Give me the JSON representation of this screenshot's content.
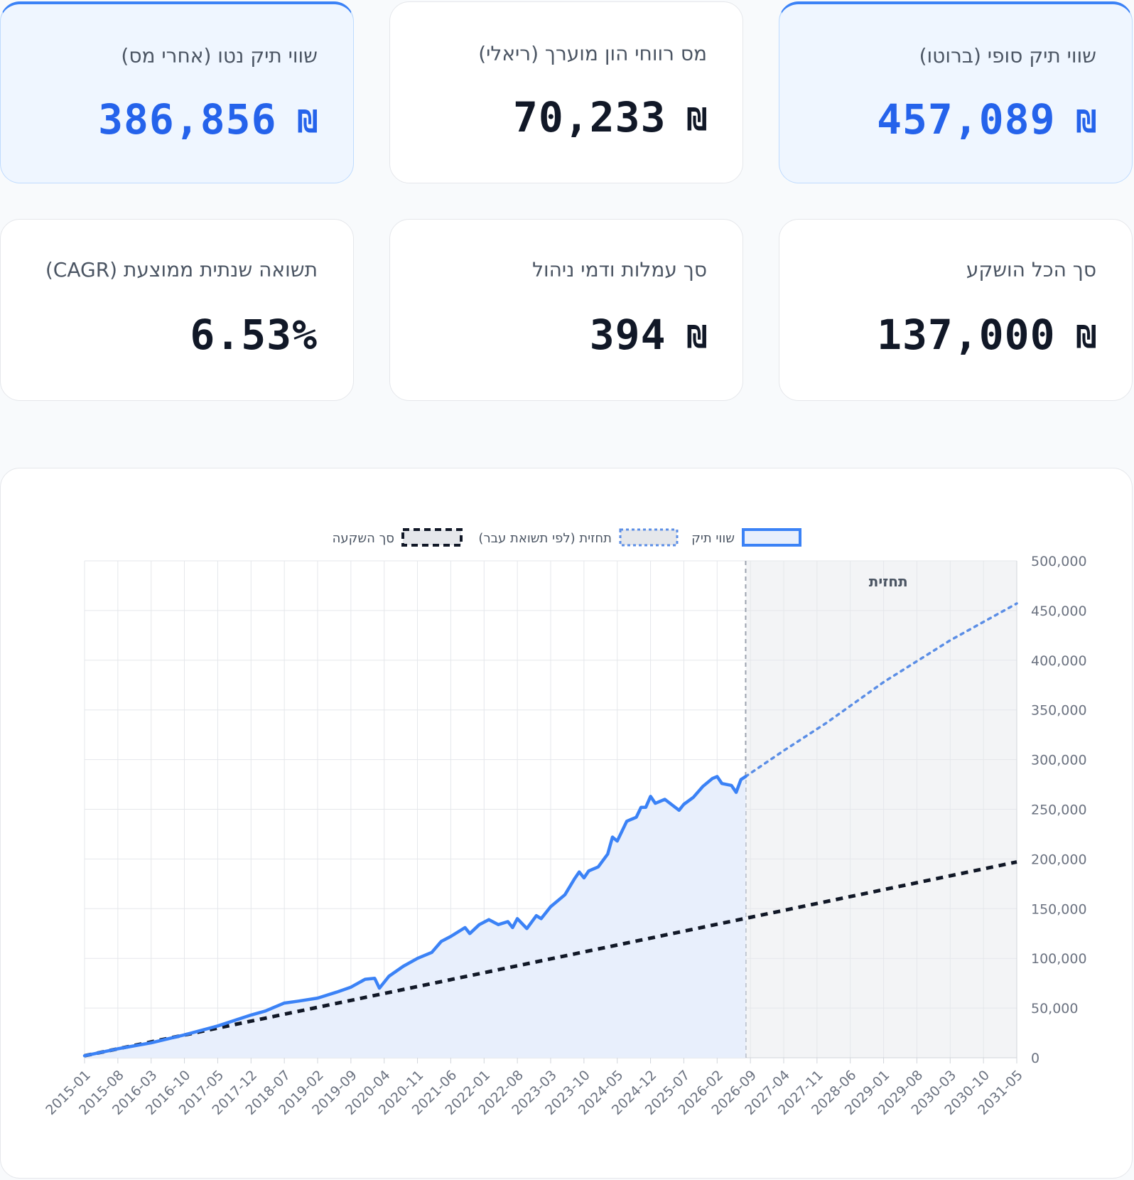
{
  "cards": {
    "gross_final": {
      "label": "שווי תיק סופי (ברוטו)",
      "value": "457,089",
      "currency": "₪"
    },
    "capital_gains_tax": {
      "label": "מס רווחי הון מוערך (ריאלי)",
      "value": "70,233",
      "currency": "₪"
    },
    "net_value": {
      "label": "שווי תיק נטו (אחרי מס)",
      "value": "386,856",
      "currency": "₪"
    },
    "total_invested": {
      "label": "סך הכל הושקע",
      "value": "137,000",
      "currency": "₪"
    },
    "fees": {
      "label": "סך עמלות ודמי ניהול",
      "value": "394",
      "currency": "₪"
    },
    "cagr": {
      "label": "תשואה שנתית ממוצעת (CAGR)",
      "value": "6.53%"
    }
  },
  "colors": {
    "accent": "#2563eb",
    "portfolio_line": "#3b82f6",
    "portfolio_fill": "#e8effc",
    "forecast_line": "#5b8ee6",
    "invested_line": "#111827",
    "forecast_region": "#f3f4f6"
  },
  "chart_data": {
    "type": "line",
    "legend_position": "top-center",
    "forecast_label": "תחזית",
    "x_tick_labels": [
      "2015-01",
      "2015-08",
      "2016-03",
      "2016-10",
      "2017-05",
      "2017-12",
      "2018-07",
      "2019-02",
      "2019-09",
      "2020-04",
      "2020-11",
      "2021-06",
      "2022-01",
      "2022-08",
      "2023-03",
      "2023-10",
      "2024-05",
      "2024-12",
      "2025-07",
      "2026-02",
      "2026-09",
      "2027-04",
      "2027-11",
      "2028-06",
      "2029-01",
      "2029-08",
      "2030-03",
      "2030-10",
      "2031-05"
    ],
    "forecast_start": "2026-08",
    "x_end": "2031-05",
    "ylim": [
      0,
      500000
    ],
    "y_ticks": [
      0,
      50000,
      100000,
      150000,
      200000,
      250000,
      300000,
      350000,
      400000,
      450000,
      500000
    ],
    "y_tick_labels": [
      "0",
      "50,000",
      "100,000",
      "150,000",
      "200,000",
      "250,000",
      "300,000",
      "350,000",
      "400,000",
      "450,000",
      "500,000"
    ],
    "grid": true,
    "series": [
      {
        "name": "שווי תיק",
        "style": "solid-filled",
        "points": [
          [
            "2015-01",
            2000
          ],
          [
            "2015-08",
            9000
          ],
          [
            "2016-03",
            15000
          ],
          [
            "2016-10",
            23000
          ],
          [
            "2017-05",
            32000
          ],
          [
            "2017-12",
            43000
          ],
          [
            "2018-03",
            47000
          ],
          [
            "2018-07",
            55000
          ],
          [
            "2018-10",
            57000
          ],
          [
            "2019-02",
            60000
          ],
          [
            "2019-06",
            66000
          ],
          [
            "2019-09",
            71000
          ],
          [
            "2019-12",
            79000
          ],
          [
            "2020-02",
            80000
          ],
          [
            "2020-03",
            70000
          ],
          [
            "2020-05",
            82000
          ],
          [
            "2020-08",
            92000
          ],
          [
            "2020-11",
            100000
          ],
          [
            "2021-02",
            106000
          ],
          [
            "2021-04",
            117000
          ],
          [
            "2021-06",
            122000
          ],
          [
            "2021-09",
            131000
          ],
          [
            "2021-10",
            125000
          ],
          [
            "2021-12",
            134000
          ],
          [
            "2022-02",
            139000
          ],
          [
            "2022-04",
            134000
          ],
          [
            "2022-06",
            137000
          ],
          [
            "2022-07",
            131000
          ],
          [
            "2022-08",
            140000
          ],
          [
            "2022-10",
            130000
          ],
          [
            "2022-12",
            143000
          ],
          [
            "2023-01",
            140000
          ],
          [
            "2023-03",
            152000
          ],
          [
            "2023-06",
            164000
          ],
          [
            "2023-08",
            180000
          ],
          [
            "2023-09",
            187000
          ],
          [
            "2023-10",
            181000
          ],
          [
            "2023-11",
            188000
          ],
          [
            "2024-01",
            192000
          ],
          [
            "2024-03",
            205000
          ],
          [
            "2024-04",
            222000
          ],
          [
            "2024-05",
            218000
          ],
          [
            "2024-07",
            238000
          ],
          [
            "2024-09",
            242000
          ],
          [
            "2024-10",
            252000
          ],
          [
            "2024-11",
            252000
          ],
          [
            "2024-12",
            263000
          ],
          [
            "2025-01",
            256000
          ],
          [
            "2025-03",
            260000
          ],
          [
            "2025-06",
            249000
          ],
          [
            "2025-07",
            255000
          ],
          [
            "2025-09",
            262000
          ],
          [
            "2025-11",
            273000
          ],
          [
            "2026-01",
            281000
          ],
          [
            "2026-02",
            283000
          ],
          [
            "2026-03",
            276000
          ],
          [
            "2026-05",
            274000
          ],
          [
            "2026-06",
            267000
          ],
          [
            "2026-07",
            280000
          ],
          [
            "2026-08",
            283000
          ]
        ]
      },
      {
        "name": "תחזית (לפי תשואת עבר)",
        "style": "dotted",
        "points": [
          [
            "2026-08",
            283000
          ],
          [
            "2027-04",
            309000
          ],
          [
            "2028-01",
            337000
          ],
          [
            "2029-01",
            378000
          ],
          [
            "2030-03",
            420000
          ],
          [
            "2031-05",
            457089
          ]
        ]
      },
      {
        "name": "סך השקעה",
        "style": "dashed",
        "points": [
          [
            "2015-01",
            2000
          ],
          [
            "2031-05",
            197000
          ]
        ]
      }
    ]
  }
}
